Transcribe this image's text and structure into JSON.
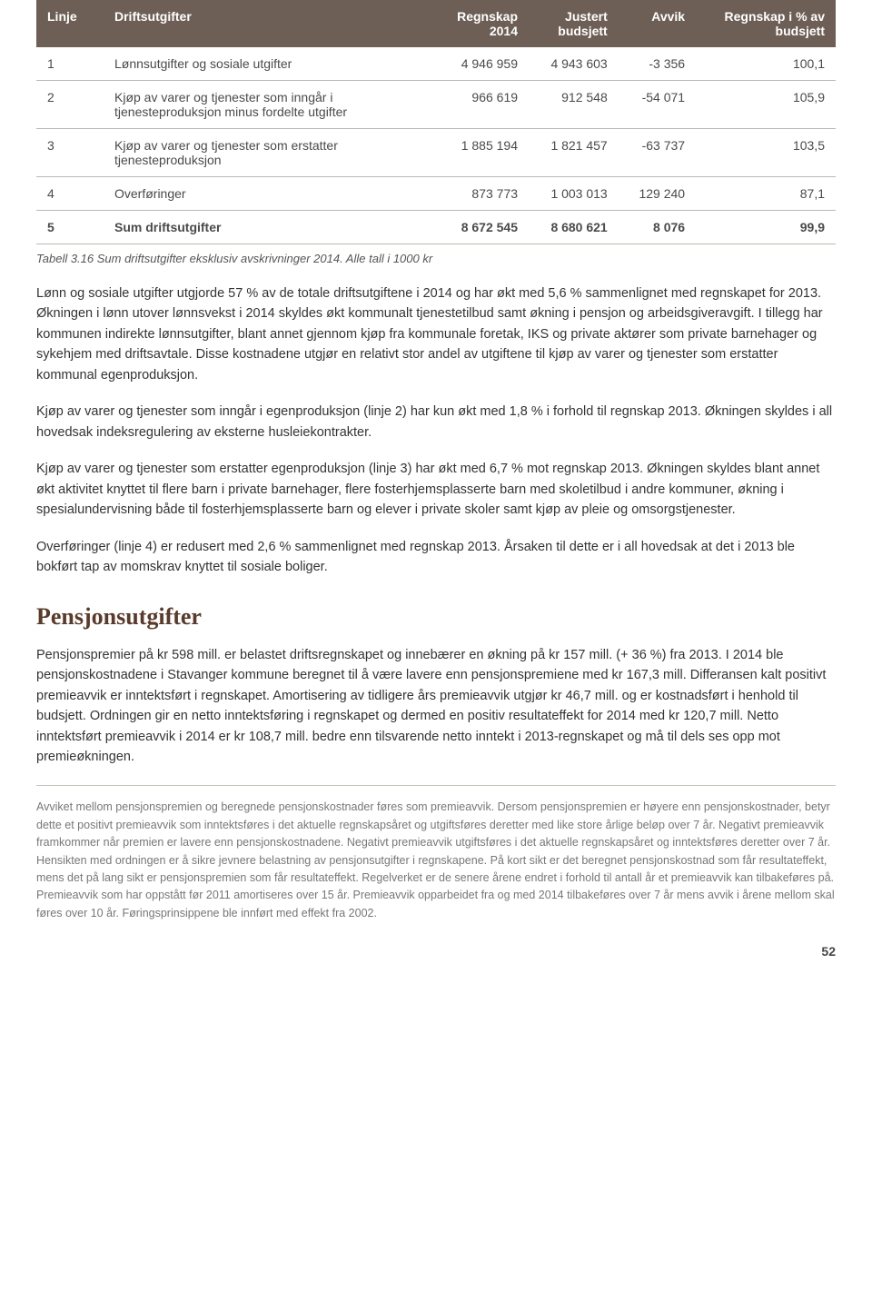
{
  "table": {
    "headers": [
      "Linje",
      "Driftsutgifter",
      "Regnskap\n2014",
      "Justert\nbudsjett",
      "Avvik",
      "Regnskap i % av\nbudsjett"
    ],
    "rows": [
      {
        "linje": "1",
        "label": "Lønnsutgifter og sosiale utgifter",
        "c1": "4 946 959",
        "c2": "4 943 603",
        "c3": "-3 356",
        "c4": "100,1"
      },
      {
        "linje": "2",
        "label": "Kjøp av varer og tjenester som inngår i tjenesteproduksjon minus fordelte utgifter",
        "c1": "966 619",
        "c2": "912 548",
        "c3": "-54 071",
        "c4": "105,9"
      },
      {
        "linje": "3",
        "label": "Kjøp av varer og tjenester som erstatter tjenesteproduksjon",
        "c1": "1 885 194",
        "c2": "1 821 457",
        "c3": "-63 737",
        "c4": "103,5"
      },
      {
        "linje": "4",
        "label": "Overføringer",
        "c1": "873 773",
        "c2": "1 003 013",
        "c3": "129 240",
        "c4": "87,1"
      },
      {
        "linje": "5",
        "label": "Sum driftsutgifter",
        "c1": "8 672 545",
        "c2": "8 680 621",
        "c3": "8 076",
        "c4": "99,9",
        "sum": true
      }
    ],
    "caption": "Tabell 3.16 Sum driftsutgifter eksklusiv avskrivninger 2014. Alle tall i 1000 kr"
  },
  "paragraphs": {
    "p1": "Lønn og sosiale utgifter utgjorde 57 % av de totale driftsutgiftene i 2014 og har økt med 5,6 % sammenlignet med regnskapet for 2013. Økningen i lønn utover lønnsvekst i 2014 skyldes økt kommunalt tjenestetilbud samt økning i pensjon og arbeidsgiveravgift. I tillegg har kommunen indirekte lønnsutgifter, blant annet gjennom kjøp fra kommunale foretak, IKS og private aktører som private barnehager og sykehjem med driftsavtale. Disse kostnadene utgjør en relativt stor andel av utgiftene til kjøp av varer og tjenester som erstatter kommunal egenproduksjon.",
    "p2": "Kjøp av varer og tjenester som inngår i egenproduksjon (linje 2) har kun økt med 1,8 % i forhold til regnskap 2013. Økningen skyldes i all hovedsak indeksregulering av eksterne husleiekontrakter.",
    "p3": "Kjøp av varer og tjenester som erstatter egenproduksjon (linje 3) har økt med 6,7 % mot regnskap 2013. Økningen skyldes blant annet økt aktivitet knyttet til flere barn i private barnehager, flere fosterhjemsplasserte barn med skoletilbud i andre kommuner, økning i spesialundervisning både til fosterhjemsplasserte barn og elever i private skoler samt kjøp av pleie og omsorgstjenester.",
    "p4": "Overføringer (linje 4) er redusert med 2,6 % sammenlignet med regnskap 2013. Årsaken til dette er i all hovedsak at det i 2013 ble bokført tap av momskrav knyttet til sosiale boliger."
  },
  "section_heading": "Pensjonsutgifter",
  "pension_para": "Pensjonspremier på kr 598 mill. er belastet driftsregnskapet og innebærer en økning på kr 157 mill. (+ 36 %) fra 2013. I 2014 ble pensjonskostnadene i Stavanger kommune beregnet til å være lavere enn pensjonspremiene med kr 167,3 mill. Differansen kalt positivt premieavvik er inntektsført i regnskapet. Amortisering av tidligere års premieavvik utgjør kr 46,7 mill. og er kostnadsført i henhold til budsjett. Ordningen gir en netto inntektsføring i regnskapet og dermed en positiv resultateffekt for 2014 med kr 120,7 mill. Netto inntektsført premieavvik i 2014 er kr 108,7 mill. bedre enn tilsvarende netto inntekt i 2013-regnskapet og må til dels ses opp mot premieøkningen.",
  "footnote": "Avviket mellom pensjonspremien og beregnede pensjonskostnader føres som premieavvik. Dersom pensjonspremien er høyere enn pensjonskostnader, betyr dette et positivt premieavvik som inntektsføres i det aktuelle regnskapsåret og utgiftsføres deretter med like store årlige beløp over 7 år. Negativt premieavvik framkommer når premien er lavere enn pensjonskostnadene. Negativt premieavvik utgiftsføres i det aktuelle regnskapsåret og inntektsføres deretter over 7 år. Hensikten med ordningen er å sikre jevnere belastning av pensjonsutgifter i regnskapene. På kort sikt er det beregnet pensjonskostnad som får resultateffekt, mens det på lang sikt er pensjonspremien som får resultateffekt. Regelverket er de senere årene endret i forhold til antall år et premieavvik kan tilbakeføres på. Premieavvik som har oppstått før 2011 amortiseres over 15 år. Premieavvik opparbeidet fra og med 2014 tilbakeføres over 7 år mens avvik i årene mellom skal føres over 10 år. Føringsprinsippene ble innført med effekt fra 2002.",
  "page_number": "52"
}
